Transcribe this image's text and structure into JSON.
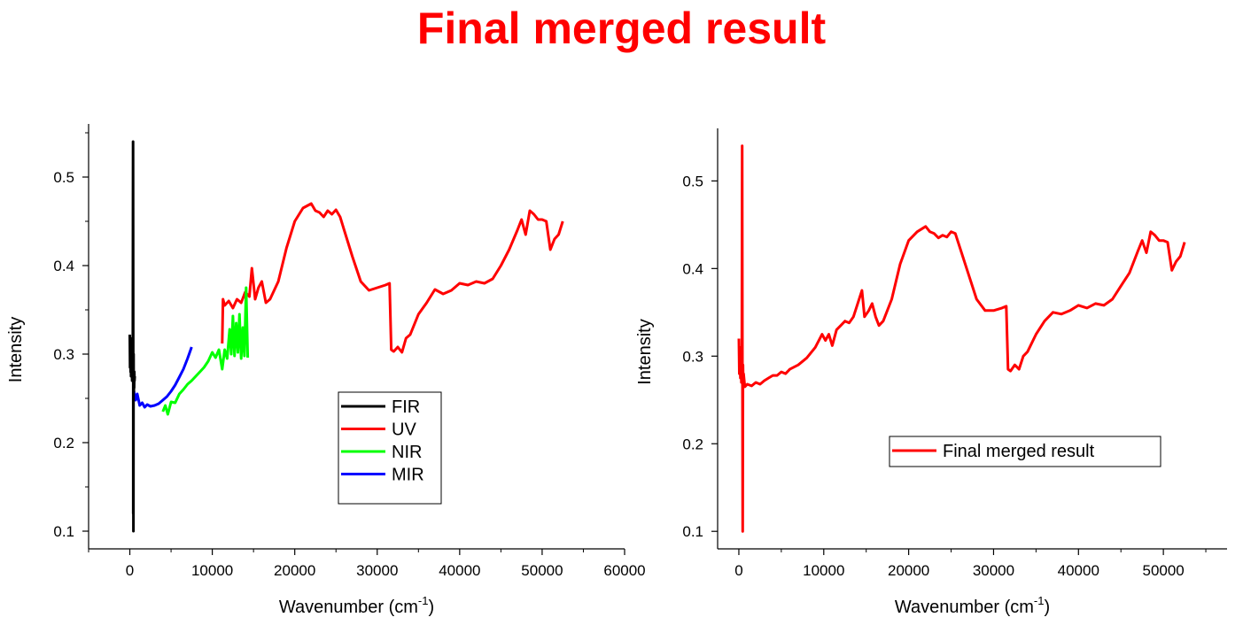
{
  "page": {
    "title": "Final merged result",
    "title_color": "#ff0000"
  },
  "chart_data": [
    {
      "type": "line",
      "xlabel": "Wavenumber (cm",
      "xlabel_sup": "-1",
      "xlabel_tail": ")",
      "ylabel": "Intensity",
      "xlim": [
        -5000,
        60000
      ],
      "ylim": [
        0.08,
        0.56
      ],
      "xticks": [
        0,
        10000,
        20000,
        30000,
        40000,
        50000,
        60000
      ],
      "yticks": [
        0.1,
        0.2,
        0.3,
        0.4,
        0.5
      ],
      "yticklabels": [
        "0.1",
        "0.2",
        "0.3",
        "0.4",
        "0.5"
      ],
      "grid": false,
      "legend_position": "lower-right-center",
      "series": [
        {
          "name": "FIR",
          "color": "#000000",
          "x": [
            0,
            30,
            60,
            90,
            120,
            150,
            180,
            210,
            240,
            270,
            300,
            330,
            360,
            390,
            410,
            420,
            430,
            440,
            450,
            460,
            470,
            480,
            490,
            500,
            520,
            540,
            560,
            600
          ],
          "y": [
            0.322,
            0.285,
            0.318,
            0.28,
            0.3,
            0.275,
            0.31,
            0.282,
            0.296,
            0.27,
            0.295,
            0.278,
            0.3,
            0.54,
            0.3,
            0.12,
            0.29,
            0.1,
            0.27,
            0.3,
            0.26,
            0.28,
            0.258,
            0.275,
            0.262,
            0.28,
            0.27,
            0.275
          ]
        },
        {
          "name": "UV",
          "color": "#ff0000",
          "x": [
            11200,
            11300,
            11500,
            12000,
            12500,
            13000,
            13500,
            14000,
            14500,
            14800,
            15200,
            15600,
            16000,
            16500,
            17000,
            18000,
            19000,
            20000,
            21000,
            22000,
            22500,
            23000,
            23500,
            24000,
            24500,
            25000,
            25500,
            26000,
            27000,
            28000,
            29000,
            30000,
            31000,
            31500,
            31700,
            32000,
            32500,
            33000,
            33500,
            34000,
            35000,
            36000,
            37000,
            38000,
            39000,
            40000,
            41000,
            42000,
            43000,
            44000,
            45000,
            46000,
            47000,
            47500,
            48000,
            48500,
            49000,
            49500,
            50000,
            50500,
            51000,
            51500,
            52000,
            52500
          ],
          "y": [
            0.312,
            0.362,
            0.355,
            0.36,
            0.352,
            0.362,
            0.358,
            0.37,
            0.365,
            0.397,
            0.362,
            0.375,
            0.382,
            0.358,
            0.362,
            0.382,
            0.42,
            0.45,
            0.465,
            0.47,
            0.462,
            0.46,
            0.455,
            0.462,
            0.458,
            0.463,
            0.455,
            0.44,
            0.41,
            0.382,
            0.372,
            0.375,
            0.378,
            0.38,
            0.305,
            0.303,
            0.308,
            0.302,
            0.318,
            0.322,
            0.345,
            0.358,
            0.373,
            0.368,
            0.372,
            0.38,
            0.378,
            0.382,
            0.38,
            0.385,
            0.4,
            0.418,
            0.44,
            0.452,
            0.435,
            0.462,
            0.458,
            0.452,
            0.452,
            0.45,
            0.418,
            0.43,
            0.435,
            0.45
          ]
        },
        {
          "name": "NIR",
          "color": "#00ff00",
          "x": [
            4000,
            4300,
            4600,
            5000,
            5500,
            6000,
            6500,
            7000,
            7500,
            8000,
            8500,
            9000,
            9500,
            10000,
            10400,
            10800,
            11200,
            11500,
            11800,
            12100,
            12300,
            12500,
            12700,
            12900,
            13100,
            13300,
            13500,
            13700,
            13900,
            14100,
            14300
          ],
          "y": [
            0.235,
            0.242,
            0.232,
            0.246,
            0.245,
            0.255,
            0.26,
            0.266,
            0.27,
            0.275,
            0.28,
            0.285,
            0.292,
            0.302,
            0.296,
            0.305,
            0.283,
            0.305,
            0.295,
            0.328,
            0.3,
            0.343,
            0.298,
            0.335,
            0.302,
            0.345,
            0.295,
            0.33,
            0.298,
            0.375,
            0.296
          ]
        },
        {
          "name": "MIR",
          "color": "#0000ff",
          "x": [
            500,
            700,
            900,
            1200,
            1500,
            1800,
            2100,
            2500,
            3000,
            3500,
            4000,
            4500,
            5000,
            5500,
            6000,
            6500,
            7000,
            7500
          ],
          "y": [
            0.258,
            0.248,
            0.255,
            0.242,
            0.245,
            0.24,
            0.243,
            0.241,
            0.242,
            0.244,
            0.248,
            0.252,
            0.258,
            0.265,
            0.274,
            0.283,
            0.295,
            0.308
          ]
        }
      ]
    },
    {
      "type": "line",
      "xlabel": "Wavenumber (cm",
      "xlabel_sup": "-1",
      "xlabel_tail": ")",
      "ylabel": "Intensity",
      "xlim": [
        -2500,
        57500
      ],
      "ylim": [
        0.08,
        0.56
      ],
      "xticks": [
        0,
        10000,
        20000,
        30000,
        40000,
        50000
      ],
      "yticks": [
        0.1,
        0.2,
        0.3,
        0.4,
        0.5
      ],
      "yticklabels": [
        "0.1",
        "0.2",
        "0.3",
        "0.4",
        "0.5"
      ],
      "grid": false,
      "legend_position": "lower-right",
      "series": [
        {
          "name": "Final merged result",
          "color": "#ff0000",
          "x": [
            0,
            60,
            120,
            180,
            240,
            300,
            350,
            390,
            420,
            450,
            480,
            520,
            560,
            700,
            1000,
            1500,
            2000,
            2500,
            3000,
            3500,
            4000,
            4500,
            5000,
            5500,
            6000,
            7000,
            8000,
            9000,
            9800,
            10200,
            10600,
            11000,
            11500,
            12000,
            12500,
            13000,
            13500,
            14000,
            14500,
            14800,
            15300,
            15700,
            16100,
            16500,
            17000,
            18000,
            19000,
            20000,
            21000,
            22000,
            22500,
            23000,
            23500,
            24000,
            24500,
            25000,
            25500,
            26000,
            27000,
            28000,
            29000,
            30000,
            31000,
            31500,
            31700,
            32000,
            32500,
            33000,
            33500,
            34000,
            35000,
            36000,
            37000,
            38000,
            39000,
            40000,
            41000,
            42000,
            43000,
            44000,
            45000,
            46000,
            47000,
            47500,
            48000,
            48500,
            49000,
            49500,
            50000,
            50500,
            51000,
            51500,
            52000,
            52500
          ],
          "y": [
            0.32,
            0.28,
            0.31,
            0.275,
            0.3,
            0.27,
            0.29,
            0.54,
            0.28,
            0.1,
            0.29,
            0.27,
            0.28,
            0.265,
            0.268,
            0.266,
            0.27,
            0.268,
            0.272,
            0.275,
            0.278,
            0.278,
            0.282,
            0.28,
            0.285,
            0.29,
            0.298,
            0.31,
            0.325,
            0.318,
            0.325,
            0.312,
            0.33,
            0.335,
            0.34,
            0.338,
            0.345,
            0.36,
            0.375,
            0.345,
            0.352,
            0.36,
            0.345,
            0.335,
            0.34,
            0.365,
            0.405,
            0.432,
            0.442,
            0.448,
            0.442,
            0.44,
            0.435,
            0.438,
            0.436,
            0.442,
            0.44,
            0.425,
            0.395,
            0.365,
            0.352,
            0.352,
            0.355,
            0.357,
            0.285,
            0.283,
            0.29,
            0.285,
            0.3,
            0.305,
            0.325,
            0.34,
            0.35,
            0.348,
            0.352,
            0.358,
            0.355,
            0.36,
            0.358,
            0.365,
            0.38,
            0.395,
            0.42,
            0.432,
            0.418,
            0.442,
            0.438,
            0.432,
            0.432,
            0.43,
            0.398,
            0.408,
            0.414,
            0.43
          ]
        }
      ]
    }
  ]
}
